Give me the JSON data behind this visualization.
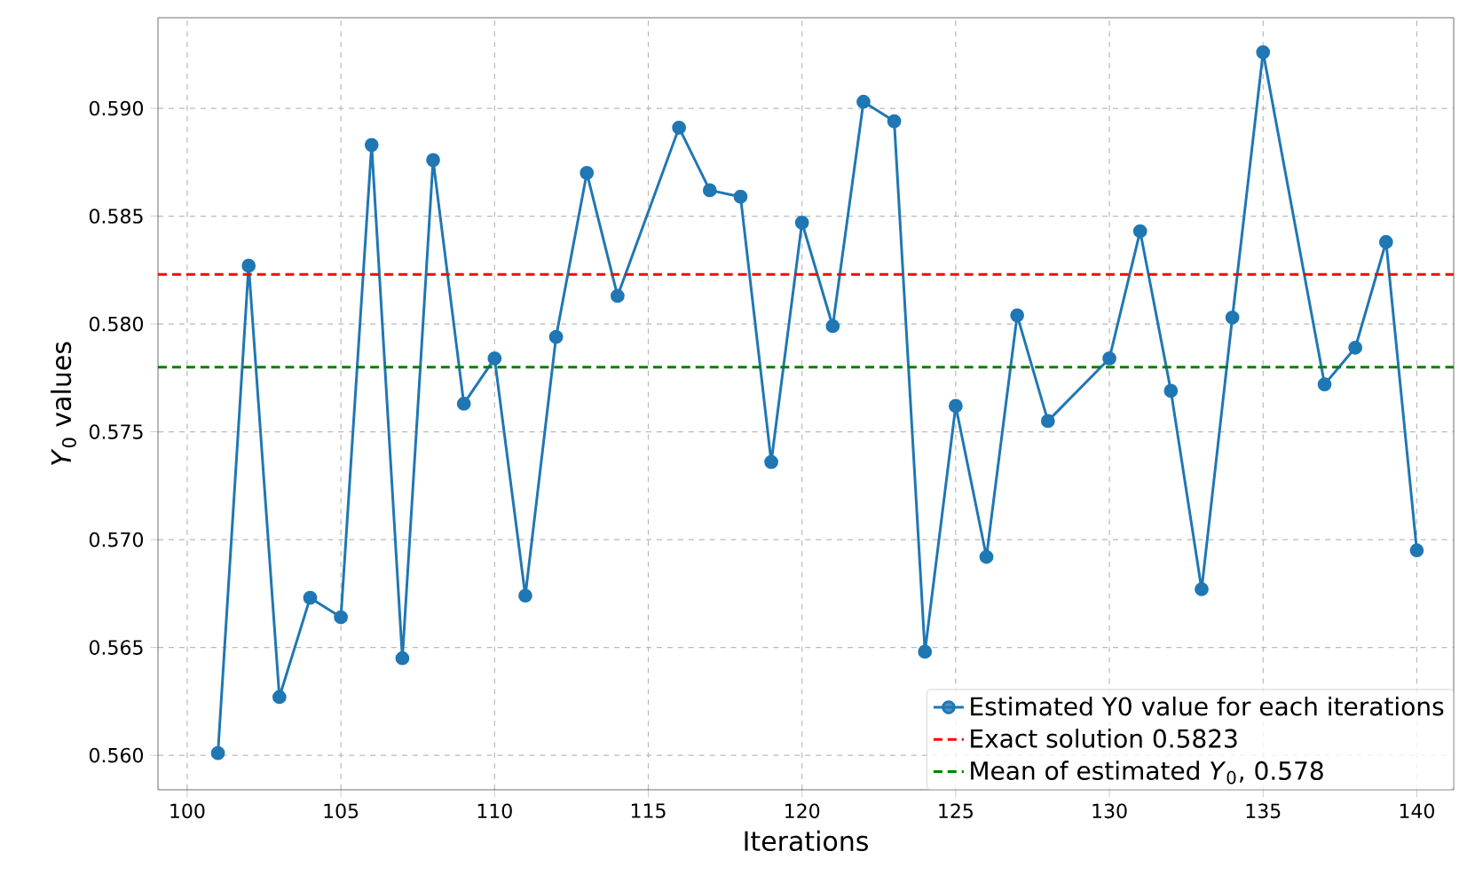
{
  "chart_data": {
    "type": "line",
    "xlabel": "Iterations",
    "ylabel": "*Y*$_{0}$ values",
    "xlim": [
      99.05,
      141.2
    ],
    "ylim": [
      0.5584,
      0.5942
    ],
    "xticks": [
      100,
      105,
      110,
      115,
      120,
      125,
      130,
      135,
      140
    ],
    "yticks": [
      {
        "value": 0.56,
        "label": "0.560"
      },
      {
        "value": 0.565,
        "label": "0.565"
      },
      {
        "value": 0.57,
        "label": "0.570"
      },
      {
        "value": 0.575,
        "label": "0.575"
      },
      {
        "value": 0.58,
        "label": "0.580"
      },
      {
        "value": 0.585,
        "label": "0.585"
      },
      {
        "value": 0.59,
        "label": "0.590"
      }
    ],
    "grid": true,
    "legend": "bottom right",
    "marker": "circle",
    "line_style": "solid",
    "series": [
      {
        "name": "Estimated Y0 value for each iterations",
        "color": "#1f77b4",
        "x": [
          101,
          102,
          103,
          104,
          105,
          106,
          107,
          108,
          109,
          110,
          111,
          112,
          113,
          114,
          116,
          117,
          118,
          119,
          120,
          121,
          122,
          123,
          124,
          125,
          126,
          127,
          128,
          130,
          131,
          132,
          133,
          134,
          135,
          137,
          138,
          139,
          140
        ],
        "values": [
          0.5601,
          0.5827,
          0.5627,
          0.5673,
          0.5664,
          0.5883,
          0.5645,
          0.5876,
          0.5763,
          0.5784,
          0.5674,
          0.5794,
          0.587,
          0.5813,
          0.5891,
          0.5862,
          0.5859,
          0.5736,
          0.5847,
          0.5799,
          0.5903,
          0.5894,
          0.5648,
          0.5762,
          0.5692,
          0.5804,
          0.5755,
          0.5784,
          0.5843,
          0.5769,
          0.5677,
          0.5803,
          0.5926,
          0.5772,
          0.5789,
          0.5838,
          0.5695
        ]
      }
    ],
    "ref_lines": [
      {
        "axis": "y",
        "value": 0.5823,
        "label": "Exact solution 0.5823",
        "color": "#ff0000",
        "line_style": "dashed"
      },
      {
        "axis": "y",
        "value": 0.578,
        "label": "Mean of estimated *Y*$_{0}$, 0.578",
        "color": "#008000",
        "line_style": "dashed"
      }
    ]
  }
}
